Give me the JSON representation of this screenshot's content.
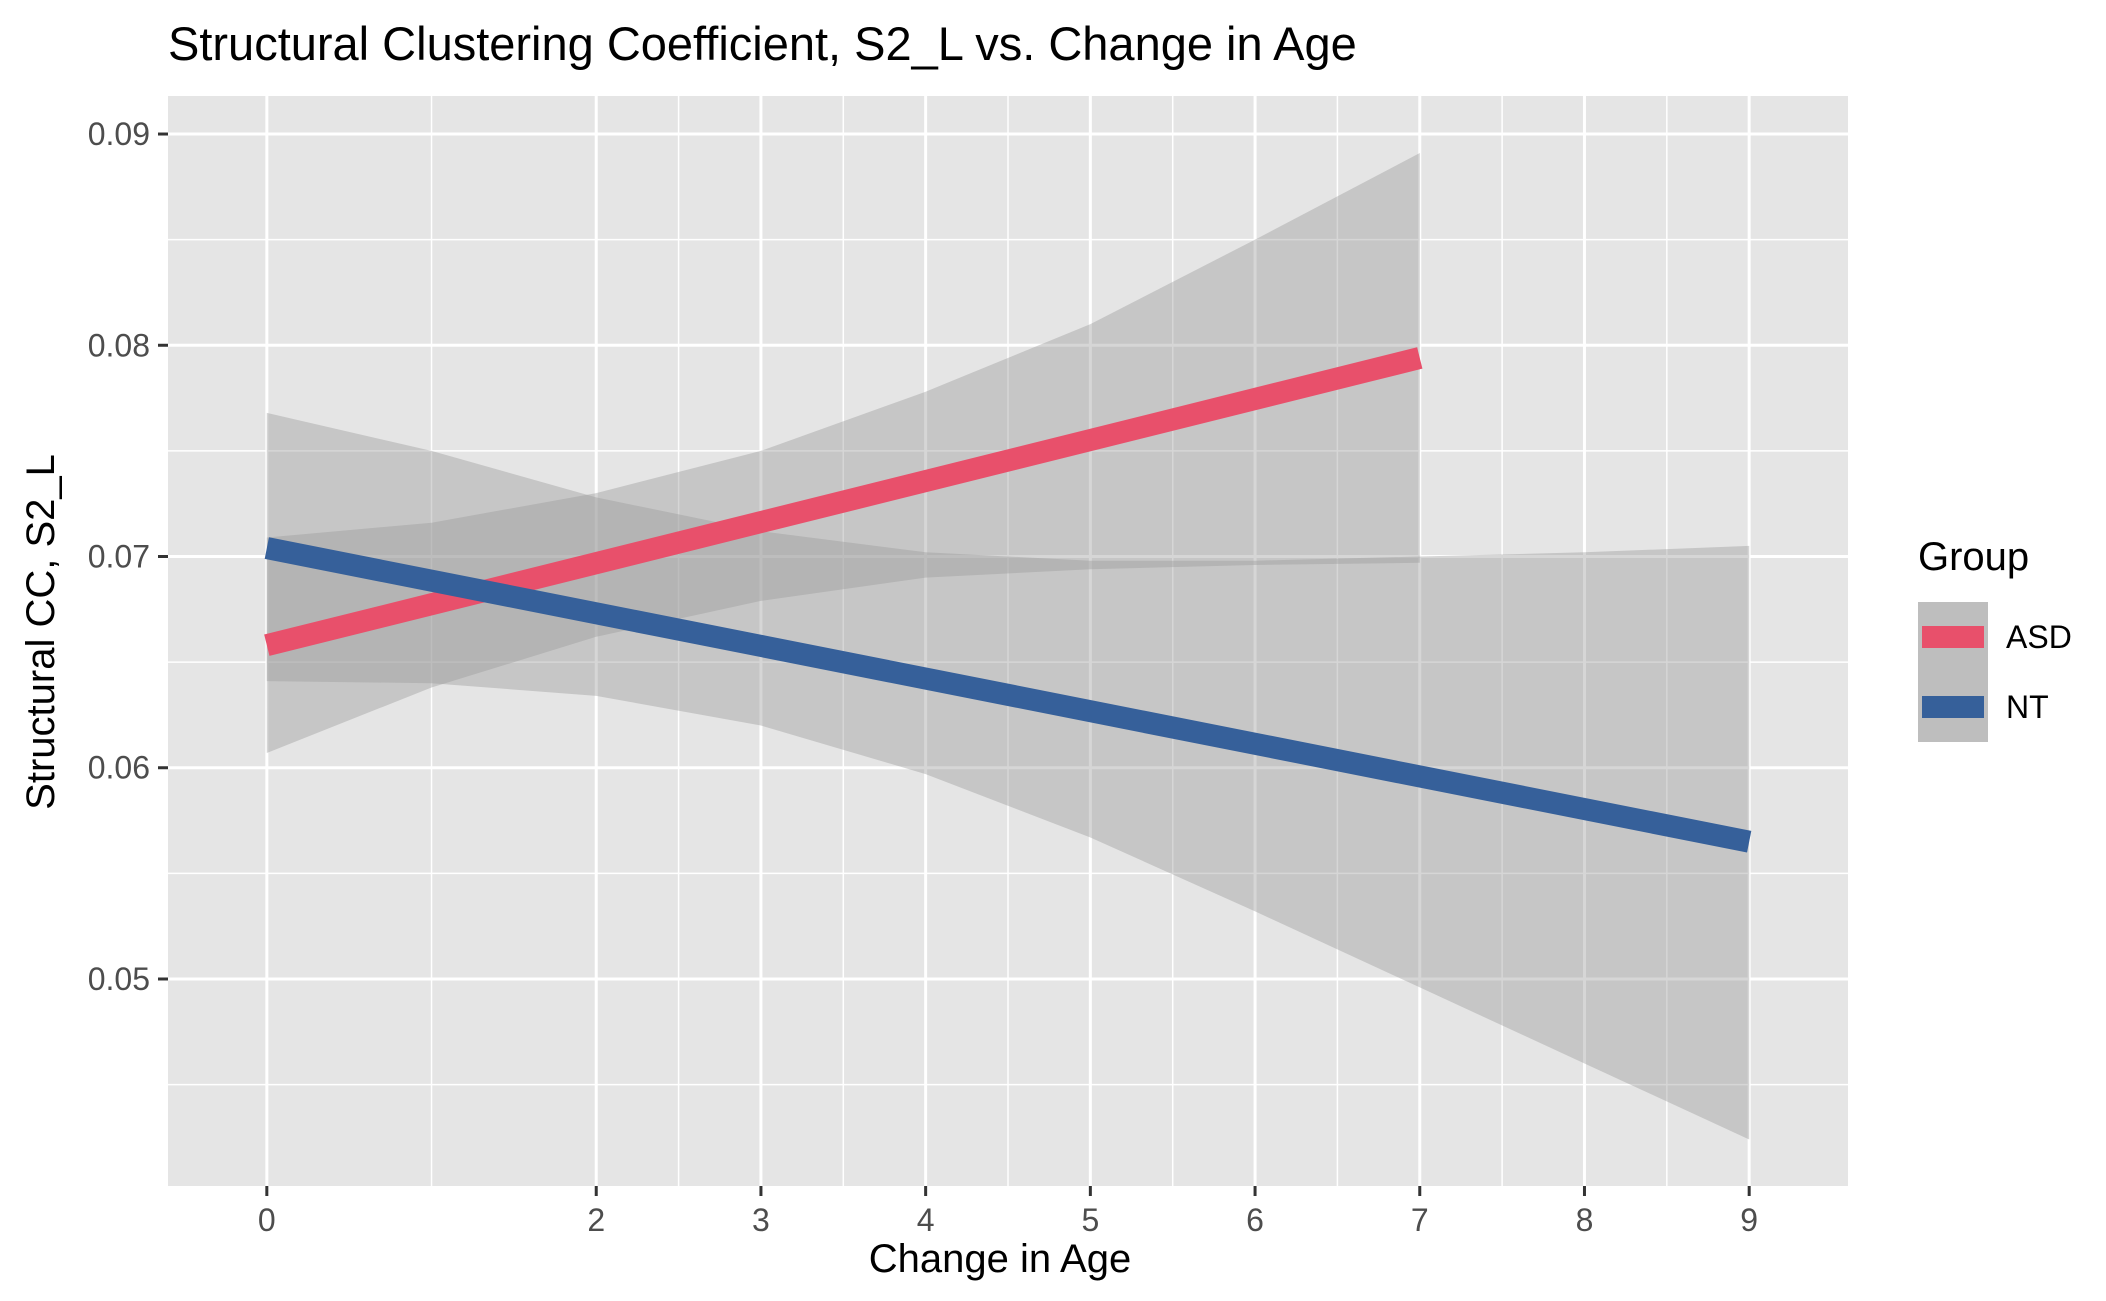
{
  "chart_data": {
    "type": "line",
    "title": "Structural Clustering Coefficient, S2_L vs. Change in Age",
    "xlabel": "Change in Age",
    "ylabel": "Structural CC, S2_L",
    "x_ticks": [
      "0",
      "2",
      "3",
      "4",
      "5",
      "6",
      "7",
      "8",
      "9"
    ],
    "x_tick_values": [
      0,
      2,
      3,
      4,
      5,
      6,
      7,
      8,
      9
    ],
    "y_ticks": [
      "0.05",
      "0.06",
      "0.07",
      "0.08",
      "0.09"
    ],
    "y_tick_values": [
      0.05,
      0.06,
      0.07,
      0.08,
      0.09
    ],
    "xlim": [
      -0.6,
      9.6
    ],
    "ylim": [
      0.0402,
      0.0918
    ],
    "grid": true,
    "legend": {
      "title": "Group",
      "position": "right"
    },
    "series": [
      {
        "name": "ASD",
        "color": "#E8506B",
        "x": [
          0,
          7
        ],
        "y": [
          0.0658,
          0.0794
        ],
        "ci_x": [
          0,
          1,
          2,
          3,
          4,
          5,
          6,
          7
        ],
        "ci_lower": [
          0.0607,
          0.0638,
          0.0662,
          0.0679,
          0.069,
          0.0694,
          0.0696,
          0.0697
        ],
        "ci_upper": [
          0.0709,
          0.0716,
          0.073,
          0.075,
          0.0778,
          0.081,
          0.085,
          0.0891
        ]
      },
      {
        "name": "NT",
        "color": "#36609A",
        "x": [
          0,
          9
        ],
        "y": [
          0.0704,
          0.0565
        ],
        "ci_x": [
          0,
          1,
          2,
          3,
          4,
          5,
          6,
          7,
          8,
          9
        ],
        "ci_lower": [
          0.0641,
          0.064,
          0.0634,
          0.062,
          0.0597,
          0.0567,
          0.0532,
          0.0496,
          0.046,
          0.0424
        ],
        "ci_upper": [
          0.0768,
          0.075,
          0.0728,
          0.0712,
          0.0702,
          0.0698,
          0.0698,
          0.07,
          0.0702,
          0.0705
        ]
      }
    ],
    "colors": {
      "panel_background": "#E5E5E5",
      "grid": "#FFFFFF",
      "ribbon": "#999999",
      "legend_key_background": "#BEBEBE"
    }
  }
}
